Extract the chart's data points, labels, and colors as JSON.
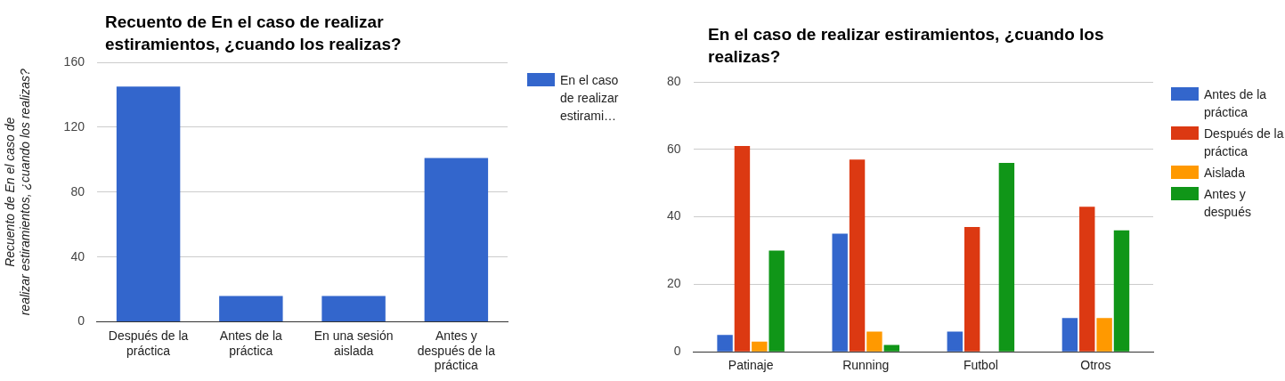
{
  "chart_data": [
    {
      "type": "bar",
      "title": "Recuento de En el caso de realizar estiramientos, ¿cuando los realizas?",
      "ylabel": "Recuento de En el caso de realizar estiramientos, ¿cuando los realizas?",
      "categories": [
        "Después de la práctica",
        "Antes de la práctica",
        "En una sesión aislada",
        "Antes y después de la práctica"
      ],
      "series": [
        {
          "name": "En el caso de realizar estirami…",
          "color": "#3366cc",
          "values": [
            145,
            16,
            16,
            101
          ]
        }
      ],
      "ylim": [
        0,
        160
      ],
      "yticks": [
        0,
        40,
        80,
        120,
        160
      ],
      "grid": "y",
      "legend": "top right"
    },
    {
      "type": "bar",
      "title": "En el caso de realizar estiramientos, ¿cuando los realizas?",
      "categories": [
        "Patinaje",
        "Running",
        "Futbol",
        "Otros"
      ],
      "series": [
        {
          "name": "Antes de la práctica",
          "color": "#3366cc",
          "values": [
            5,
            35,
            6,
            10
          ]
        },
        {
          "name": "Después de la práctica",
          "color": "#dc3912",
          "values": [
            61,
            57,
            37,
            43
          ]
        },
        {
          "name": "Aislada",
          "color": "#ff9900",
          "values": [
            3,
            6,
            0,
            10
          ]
        },
        {
          "name": "Antes y después",
          "color": "#109618",
          "values": [
            30,
            2,
            56,
            36
          ]
        }
      ],
      "ylim": [
        0,
        80
      ],
      "yticks": [
        0,
        20,
        40,
        60,
        80
      ],
      "grid": "y",
      "legend": "top right"
    }
  ]
}
